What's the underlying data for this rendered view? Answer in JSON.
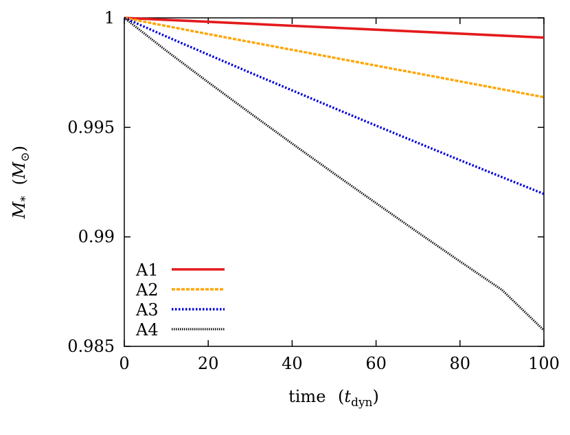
{
  "chart_data": {
    "type": "line",
    "title": "",
    "xlabel": "time",
    "xlabel_unit": "t",
    "xlabel_unit_sub": "dyn",
    "ylabel": "M",
    "ylabel_sub": "*",
    "ylabel_unit": "M",
    "ylabel_unit_sub": "⊙",
    "xlim": [
      0,
      100
    ],
    "ylim": [
      0.985,
      1
    ],
    "xticks": [
      0,
      20,
      40,
      60,
      80,
      100
    ],
    "xtick_labels": [
      "0",
      "20",
      "40",
      "60",
      "80",
      "100"
    ],
    "yticks": [
      0.985,
      0.99,
      0.995,
      1
    ],
    "ytick_labels": [
      "0.985",
      "0.99",
      "0.995",
      "1"
    ],
    "grid": false,
    "legend_position": "bottom-left",
    "series": [
      {
        "name": "A1",
        "color": "#e41a1c",
        "style": "solid",
        "x": [
          0,
          10,
          20,
          30,
          40,
          50,
          60,
          70,
          80,
          90,
          100
        ],
        "y": [
          1.0,
          0.99991,
          0.99982,
          0.99973,
          0.99964,
          0.99955,
          0.99946,
          0.99937,
          0.99928,
          0.99919,
          0.9991
        ]
      },
      {
        "name": "A2",
        "color": "#ffa500",
        "style": "dashed",
        "x": [
          0,
          10,
          20,
          30,
          40,
          50,
          60,
          70,
          80,
          90,
          100
        ],
        "y": [
          1.0,
          0.99963,
          0.99926,
          0.9989,
          0.99854,
          0.99818,
          0.99782,
          0.99746,
          0.9971,
          0.99674,
          0.99638
        ]
      },
      {
        "name": "A3",
        "color": "#0000dd",
        "style": "dotted",
        "x": [
          0,
          10,
          20,
          30,
          40,
          50,
          60,
          70,
          80,
          90,
          100
        ],
        "y": [
          1.0,
          0.99915,
          0.99832,
          0.9975,
          0.99669,
          0.99588,
          0.99508,
          0.99429,
          0.9935,
          0.99273,
          0.99196
        ]
      },
      {
        "name": "A4",
        "color": "#111111",
        "style": "dense-dotted",
        "x": [
          0,
          10,
          20,
          30,
          40,
          50,
          60,
          70,
          80,
          90,
          100
        ],
        "y": [
          1.0,
          0.9985,
          0.99706,
          0.99565,
          0.99426,
          0.99289,
          0.99154,
          0.9902,
          0.98888,
          0.98758,
          0.98573
        ]
      }
    ]
  }
}
